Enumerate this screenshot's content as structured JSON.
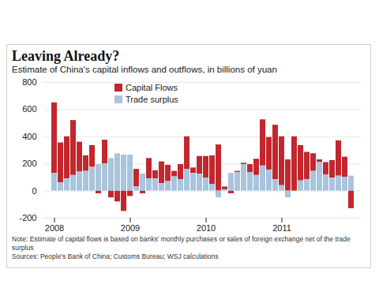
{
  "chart_data": {
    "type": "bar",
    "title": "Leaving Already?",
    "subtitle": "Estimate of China's capital inflows and outflows, in billions of yuan",
    "note": "Note: Estimate of capital flows is based on banks' monthly purchases or sales of foreign exchange net of the trade surplus",
    "source": "Sources: People's Bank of China; Customs Bureau; WSJ calculations",
    "stacked": true,
    "grid": true,
    "legend": "top-left",
    "categories": [
      "2008",
      null,
      null,
      null,
      null,
      null,
      null,
      null,
      null,
      null,
      null,
      null,
      "2009",
      null,
      null,
      null,
      null,
      null,
      null,
      null,
      null,
      null,
      null,
      null,
      "2010",
      null,
      null,
      null,
      null,
      null,
      null,
      null,
      null,
      null,
      null,
      null,
      "2011",
      null,
      null,
      null,
      null,
      null,
      null,
      null,
      null,
      null,
      null,
      null
    ],
    "series": [
      {
        "name": "Capital Flows",
        "color": "#c1272d",
        "values": [
          520,
          295,
          310,
          405,
          220,
          115,
          160,
          -20,
          175,
          -50,
          -80,
          -150,
          -40,
          130,
          -20,
          150,
          60,
          160,
          120,
          40,
          110,
          240,
          40,
          130,
          160,
          210,
          340,
          20,
          -20,
          10,
          10,
          60,
          120,
          340,
          240,
          400,
          360,
          230,
          400,
          260,
          200,
          130,
          20,
          90,
          130,
          260,
          150,
          -130
        ]
      },
      {
        "name": "Trade surplus",
        "color": "#a9c4dc",
        "values": [
          130,
          60,
          90,
          115,
          140,
          145,
          175,
          195,
          200,
          240,
          275,
          265,
          265,
          30,
          125,
          90,
          90,
          55,
          70,
          105,
          85,
          160,
          130,
          125,
          95,
          50,
          -50,
          10,
          130,
          135,
          195,
          135,
          115,
          185,
          155,
          85,
          40,
          -50,
          0,
          75,
          85,
          145,
          210,
          120,
          95,
          110,
          100,
          110
        ]
      }
    ],
    "ylim": [
      -200,
      800
    ],
    "yticks": [
      -200,
      0,
      200,
      400,
      600,
      800
    ]
  }
}
